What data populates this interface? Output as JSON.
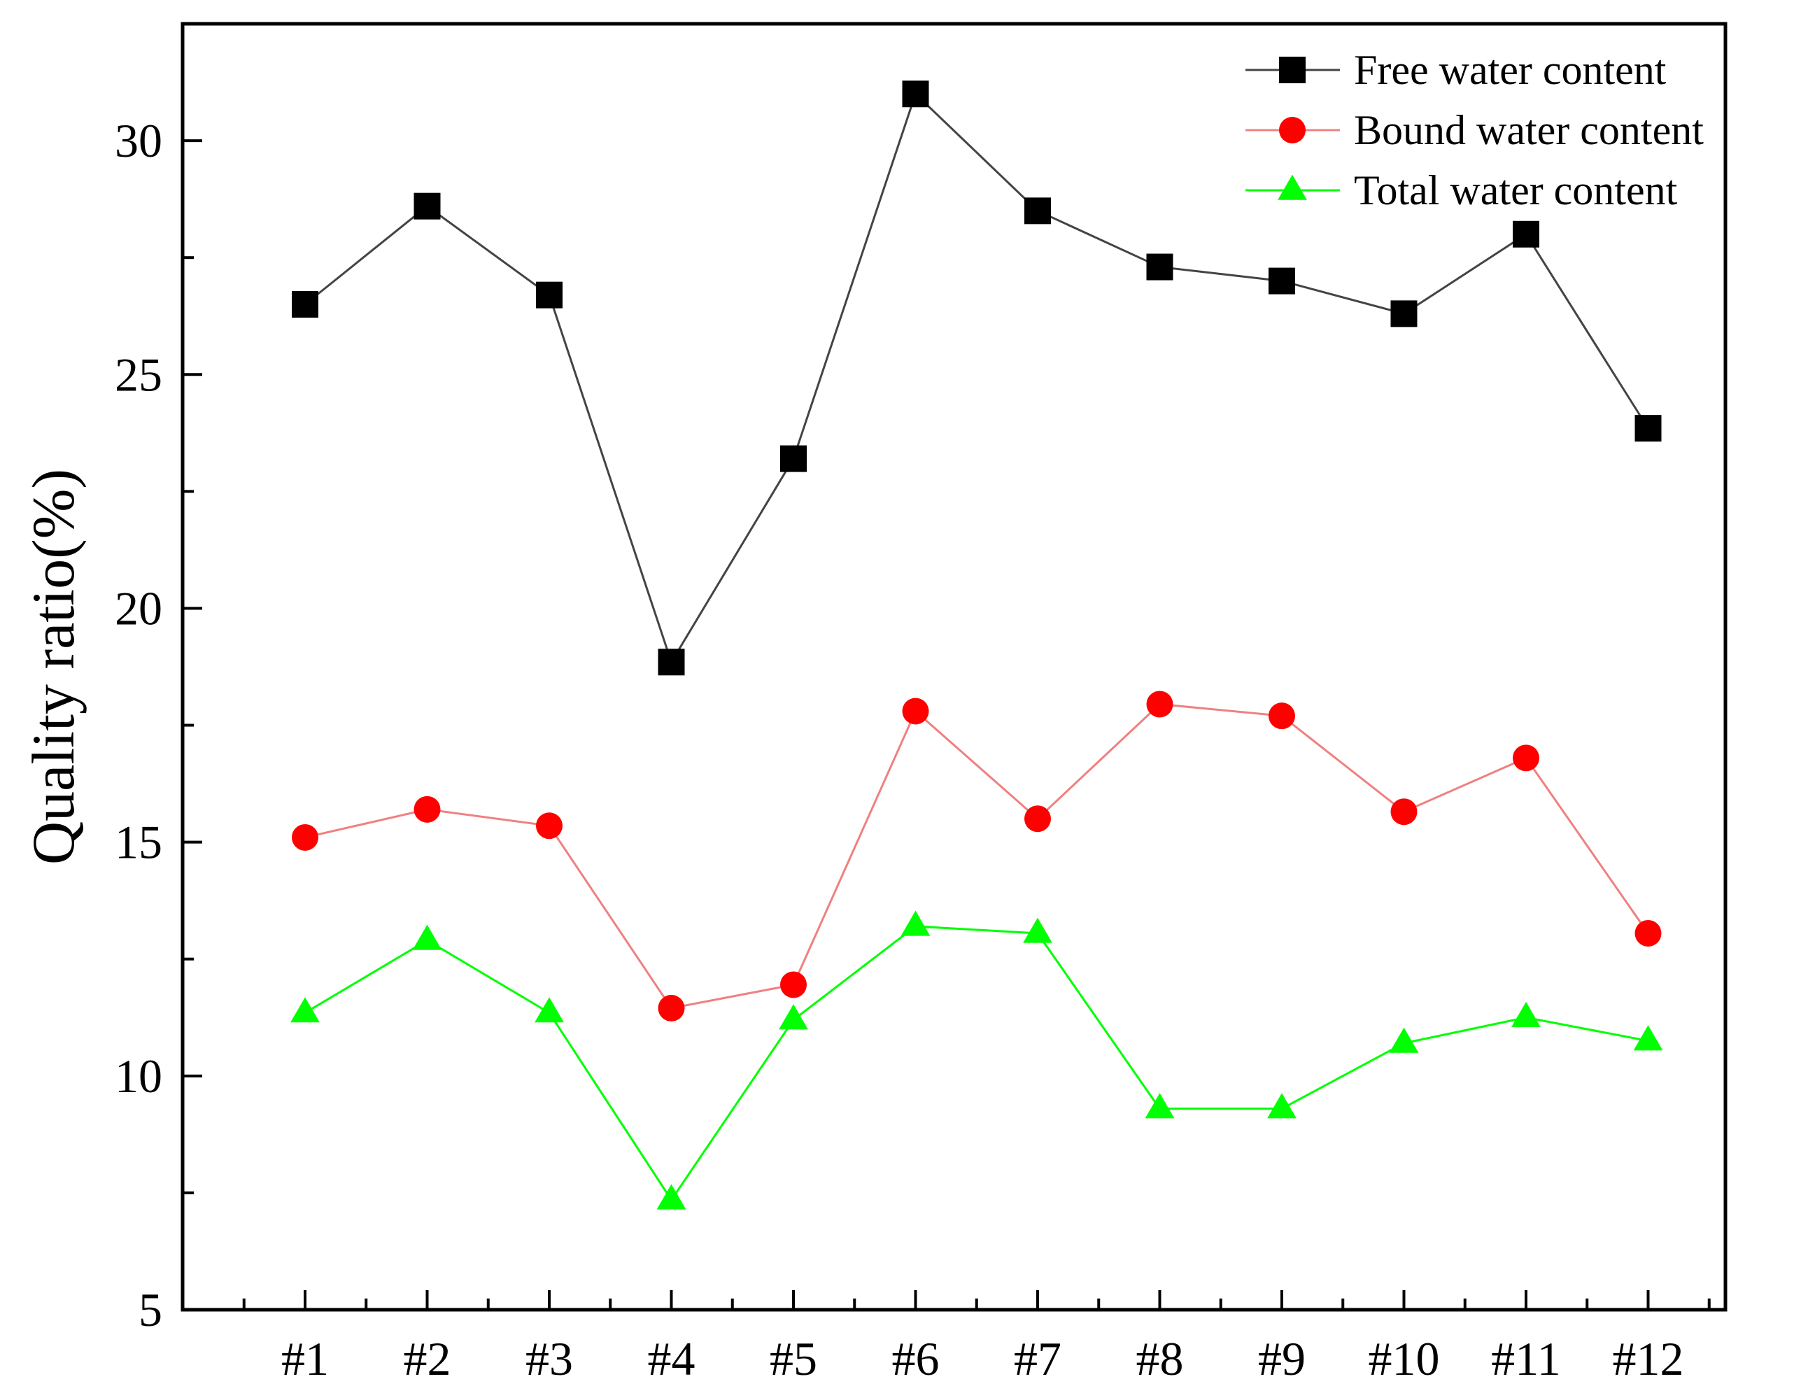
{
  "chart_data": {
    "type": "line",
    "title": "",
    "xlabel": "",
    "ylabel": "Quality ratio(%)",
    "ylim": [
      5,
      32.5
    ],
    "yticks": [
      5,
      10,
      15,
      20,
      25,
      30
    ],
    "grid": false,
    "legend_position": "top-right",
    "categories": [
      "#1",
      "#2",
      "#3",
      "#4",
      "#5",
      "#6",
      "#7",
      "#8",
      "#9",
      "#10",
      "#11",
      "#12"
    ],
    "series": [
      {
        "name": "Free water content",
        "color": "#000000",
        "line_color": "#444444",
        "marker": "square",
        "values": [
          26.5,
          28.6,
          26.7,
          18.85,
          23.2,
          31.0,
          28.5,
          27.3,
          27.0,
          26.3,
          28.0,
          23.85
        ]
      },
      {
        "name": "Bound water content",
        "color": "#ff0000",
        "line_color": "#f08080",
        "marker": "circle",
        "values": [
          15.1,
          15.7,
          15.35,
          11.45,
          11.95,
          17.8,
          15.5,
          17.95,
          17.7,
          15.65,
          16.8,
          13.05
        ]
      },
      {
        "name": "Total water content",
        "color": "#00ff00",
        "line_color": "#00ff00",
        "marker": "triangle",
        "values": [
          11.35,
          12.9,
          11.35,
          7.35,
          11.2,
          13.2,
          13.05,
          9.3,
          9.3,
          10.7,
          11.25,
          10.75
        ]
      }
    ]
  }
}
